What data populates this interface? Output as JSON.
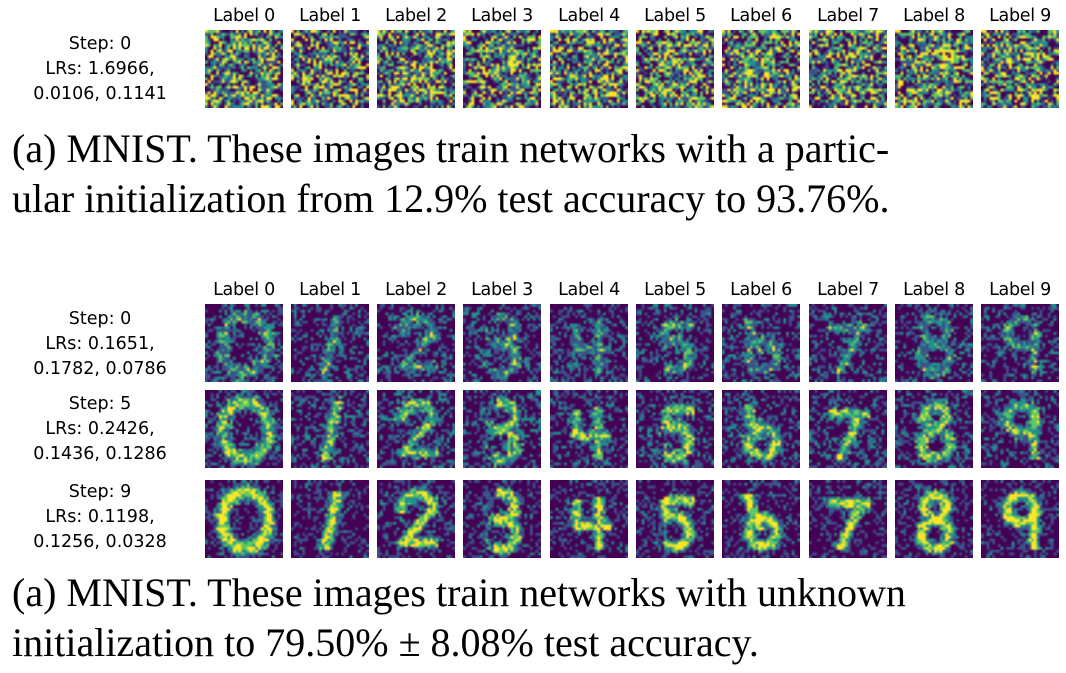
{
  "colormap": [
    "#440154",
    "#3b528b",
    "#21918c",
    "#5ec962",
    "#fde725"
  ],
  "panel_a": {
    "column_labels": [
      "Label 0",
      "Label 1",
      "Label 2",
      "Label 3",
      "Label 4",
      "Label 5",
      "Label 6",
      "Label 7",
      "Label 8",
      "Label 9"
    ],
    "rows": [
      {
        "step": "Step: 0",
        "lrs_1": "LRs: 1.6966,",
        "lrs_2": "0.0106, 0.1141",
        "style": "noisy"
      }
    ],
    "caption_line1": "(a) MNIST. These images train networks with a partic-",
    "caption_line2": "ular initialization from 12.9% test accuracy to 93.76%."
  },
  "panel_b": {
    "column_labels": [
      "Label 0",
      "Label 1",
      "Label 2",
      "Label 3",
      "Label 4",
      "Label 5",
      "Label 6",
      "Label 7",
      "Label 8",
      "Label 9"
    ],
    "rows": [
      {
        "step": "Step: 0",
        "lrs_1": "LRs: 0.1651,",
        "lrs_2": "0.1782, 0.0786",
        "style": "faint"
      },
      {
        "step": "Step: 5",
        "lrs_1": "LRs: 0.2426,",
        "lrs_2": "0.1436, 0.1286",
        "style": "medium"
      },
      {
        "step": "Step: 9",
        "lrs_1": "LRs: 0.1198,",
        "lrs_2": "0.1256, 0.0328",
        "style": "clear"
      }
    ],
    "caption_line1": "(a) MNIST. These images train networks with unknown",
    "caption_line2": "initialization to 79.50% ± 8.08% test accuracy."
  }
}
